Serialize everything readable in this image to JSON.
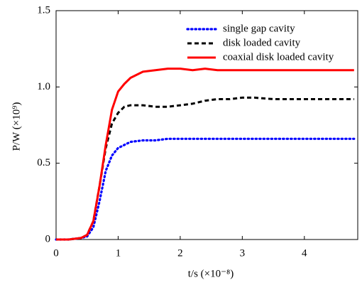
{
  "chart_data": {
    "type": "line",
    "xlabel": "t/s  (×10⁻⁸)",
    "ylabel": "P/W  (×10⁹)",
    "x": [
      0,
      0.2,
      0.4,
      0.5,
      0.6,
      0.7,
      0.8,
      0.9,
      1.0,
      1.1,
      1.2,
      1.4,
      1.6,
      1.8,
      2.0,
      2.2,
      2.4,
      2.6,
      2.8,
      3.0,
      3.2,
      3.5,
      4.0,
      4.5,
      4.8
    ],
    "series": [
      {
        "name": "single gap cavity",
        "color": "#0000ff",
        "style": "dotted",
        "values": [
          0,
          0,
          0.01,
          0.02,
          0.08,
          0.25,
          0.45,
          0.55,
          0.6,
          0.62,
          0.64,
          0.65,
          0.65,
          0.66,
          0.66,
          0.66,
          0.66,
          0.66,
          0.66,
          0.66,
          0.66,
          0.66,
          0.66,
          0.66,
          0.66
        ]
      },
      {
        "name": "disk loaded cavity",
        "color": "#000000",
        "style": "dashed",
        "values": [
          0,
          0,
          0.01,
          0.03,
          0.12,
          0.35,
          0.6,
          0.76,
          0.83,
          0.87,
          0.88,
          0.88,
          0.87,
          0.87,
          0.88,
          0.89,
          0.91,
          0.92,
          0.92,
          0.93,
          0.93,
          0.92,
          0.92,
          0.92,
          0.92
        ]
      },
      {
        "name": "coaxial disk loaded cavity",
        "color": "#ff0000",
        "style": "solid",
        "values": [
          0,
          0,
          0.01,
          0.03,
          0.12,
          0.35,
          0.62,
          0.85,
          0.97,
          1.02,
          1.06,
          1.1,
          1.11,
          1.12,
          1.12,
          1.11,
          1.12,
          1.11,
          1.11,
          1.11,
          1.11,
          1.11,
          1.11,
          1.11,
          1.11
        ]
      }
    ],
    "xlim": [
      0,
      4.86
    ],
    "xticks": [
      0,
      1,
      2,
      3,
      4
    ],
    "ylim": [
      0,
      1.5
    ],
    "yticks": [
      0,
      0.5,
      {
        "value": 1,
        "label": "1.0"
      },
      1.5
    ],
    "grid": false,
    "legend": "upper-right"
  }
}
